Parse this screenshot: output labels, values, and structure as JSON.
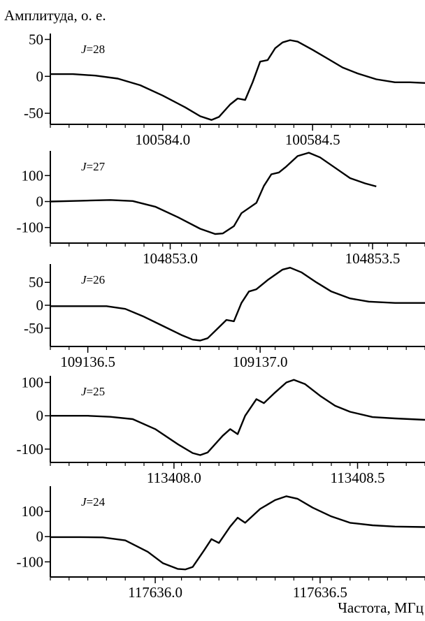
{
  "figure": {
    "y_title": "Амплитуда, о. е.",
    "x_title": "Частота, МГц"
  },
  "chart_data": [
    {
      "type": "line",
      "annotation": "J=28",
      "ylim": [
        -65,
        58
      ],
      "yticks": [
        {
          "v": 50,
          "label": "50"
        },
        {
          "v": 0,
          "label": "0"
        },
        {
          "v": -50,
          "label": "-50"
        }
      ],
      "xticks": [
        {
          "f": 0.3,
          "label": "100584.0"
        },
        {
          "f": 0.7,
          "label": "100584.5"
        }
      ],
      "series": [
        {
          "line_end": 1.0,
          "points": [
            [
              0.0,
              3
            ],
            [
              0.06,
              3
            ],
            [
              0.12,
              1
            ],
            [
              0.18,
              -3
            ],
            [
              0.24,
              -12
            ],
            [
              0.3,
              -26
            ],
            [
              0.36,
              -42
            ],
            [
              0.4,
              -54
            ],
            [
              0.43,
              -59
            ],
            [
              0.45,
              -55
            ],
            [
              0.48,
              -38
            ],
            [
              0.5,
              -30
            ],
            [
              0.52,
              -32
            ],
            [
              0.54,
              -8
            ],
            [
              0.56,
              20
            ],
            [
              0.58,
              22
            ],
            [
              0.6,
              38
            ],
            [
              0.62,
              46
            ],
            [
              0.64,
              49
            ],
            [
              0.66,
              47
            ],
            [
              0.7,
              36
            ],
            [
              0.74,
              24
            ],
            [
              0.78,
              12
            ],
            [
              0.82,
              4
            ],
            [
              0.87,
              -4
            ],
            [
              0.92,
              -8
            ],
            [
              0.96,
              -8
            ],
            [
              1.0,
              -9
            ]
          ]
        }
      ]
    },
    {
      "type": "line",
      "annotation": "J=27",
      "ylim": [
        -160,
        195
      ],
      "yticks": [
        {
          "v": 100,
          "label": "100"
        },
        {
          "v": 0,
          "label": "0"
        },
        {
          "v": -100,
          "label": "-100"
        }
      ],
      "xticks": [
        {
          "f": 0.32,
          "label": "104853.0"
        },
        {
          "f": 0.86,
          "label": "104853.5"
        }
      ],
      "series": [
        {
          "line_end": 0.87,
          "points": [
            [
              0.0,
              0
            ],
            [
              0.08,
              3
            ],
            [
              0.16,
              6
            ],
            [
              0.22,
              2
            ],
            [
              0.28,
              -20
            ],
            [
              0.34,
              -60
            ],
            [
              0.4,
              -105
            ],
            [
              0.44,
              -125
            ],
            [
              0.46,
              -123
            ],
            [
              0.49,
              -95
            ],
            [
              0.51,
              -45
            ],
            [
              0.53,
              -25
            ],
            [
              0.55,
              -5
            ],
            [
              0.57,
              60
            ],
            [
              0.59,
              105
            ],
            [
              0.61,
              112
            ],
            [
              0.63,
              135
            ],
            [
              0.66,
              175
            ],
            [
              0.69,
              188
            ],
            [
              0.72,
              170
            ],
            [
              0.76,
              130
            ],
            [
              0.8,
              90
            ],
            [
              0.84,
              70
            ],
            [
              0.87,
              58
            ]
          ]
        }
      ]
    },
    {
      "type": "line",
      "annotation": "J=26",
      "ylim": [
        -90,
        90
      ],
      "yticks": [
        {
          "v": 50,
          "label": "50"
        },
        {
          "v": 0,
          "label": "0"
        },
        {
          "v": -50,
          "label": "-50"
        }
      ],
      "xticks": [
        {
          "f": 0.1,
          "label": "109136.5"
        },
        {
          "f": 0.56,
          "label": "109137.0"
        }
      ],
      "series": [
        {
          "line_end": 1.0,
          "points": [
            [
              0.0,
              -2
            ],
            [
              0.08,
              -2
            ],
            [
              0.15,
              -2
            ],
            [
              0.2,
              -8
            ],
            [
              0.25,
              -25
            ],
            [
              0.3,
              -45
            ],
            [
              0.35,
              -65
            ],
            [
              0.38,
              -75
            ],
            [
              0.4,
              -77
            ],
            [
              0.42,
              -72
            ],
            [
              0.45,
              -48
            ],
            [
              0.47,
              -32
            ],
            [
              0.49,
              -35
            ],
            [
              0.51,
              5
            ],
            [
              0.53,
              30
            ],
            [
              0.55,
              35
            ],
            [
              0.58,
              55
            ],
            [
              0.62,
              78
            ],
            [
              0.64,
              82
            ],
            [
              0.67,
              72
            ],
            [
              0.71,
              50
            ],
            [
              0.75,
              30
            ],
            [
              0.8,
              15
            ],
            [
              0.85,
              8
            ],
            [
              0.92,
              5
            ],
            [
              1.0,
              5
            ]
          ]
        }
      ]
    },
    {
      "type": "line",
      "annotation": "J=25",
      "ylim": [
        -140,
        120
      ],
      "yticks": [
        {
          "v": 100,
          "label": "100"
        },
        {
          "v": 0,
          "label": "0"
        },
        {
          "v": -100,
          "label": "-100"
        }
      ],
      "xticks": [
        {
          "f": 0.33,
          "label": "113408.0"
        },
        {
          "f": 0.82,
          "label": "113408.5"
        }
      ],
      "series": [
        {
          "line_end": 1.0,
          "points": [
            [
              0.0,
              0
            ],
            [
              0.1,
              0
            ],
            [
              0.16,
              -3
            ],
            [
              0.22,
              -10
            ],
            [
              0.28,
              -40
            ],
            [
              0.34,
              -85
            ],
            [
              0.38,
              -112
            ],
            [
              0.4,
              -118
            ],
            [
              0.42,
              -110
            ],
            [
              0.46,
              -60
            ],
            [
              0.48,
              -40
            ],
            [
              0.5,
              -55
            ],
            [
              0.52,
              0
            ],
            [
              0.55,
              50
            ],
            [
              0.57,
              38
            ],
            [
              0.6,
              70
            ],
            [
              0.63,
              100
            ],
            [
              0.65,
              108
            ],
            [
              0.68,
              95
            ],
            [
              0.72,
              60
            ],
            [
              0.76,
              30
            ],
            [
              0.8,
              12
            ],
            [
              0.86,
              -4
            ],
            [
              0.92,
              -8
            ],
            [
              1.0,
              -12
            ]
          ]
        }
      ]
    },
    {
      "type": "line",
      "annotation": "J=24",
      "ylim": [
        -160,
        200
      ],
      "yticks": [
        {
          "v": 100,
          "label": "100"
        },
        {
          "v": 0,
          "label": "0"
        },
        {
          "v": -100,
          "label": "-100"
        }
      ],
      "xticks": [
        {
          "f": 0.28,
          "label": "117636.0"
        },
        {
          "f": 0.72,
          "label": "117636.5"
        }
      ],
      "series": [
        {
          "line_end": 1.0,
          "points": [
            [
              0.0,
              -2
            ],
            [
              0.08,
              -2
            ],
            [
              0.14,
              -3
            ],
            [
              0.2,
              -15
            ],
            [
              0.26,
              -60
            ],
            [
              0.3,
              -105
            ],
            [
              0.34,
              -128
            ],
            [
              0.36,
              -130
            ],
            [
              0.38,
              -120
            ],
            [
              0.41,
              -55
            ],
            [
              0.43,
              -10
            ],
            [
              0.45,
              -25
            ],
            [
              0.48,
              40
            ],
            [
              0.5,
              75
            ],
            [
              0.52,
              55
            ],
            [
              0.56,
              110
            ],
            [
              0.6,
              145
            ],
            [
              0.63,
              160
            ],
            [
              0.66,
              150
            ],
            [
              0.7,
              115
            ],
            [
              0.75,
              80
            ],
            [
              0.8,
              55
            ],
            [
              0.86,
              45
            ],
            [
              0.92,
              40
            ],
            [
              1.0,
              38
            ]
          ]
        }
      ]
    }
  ]
}
